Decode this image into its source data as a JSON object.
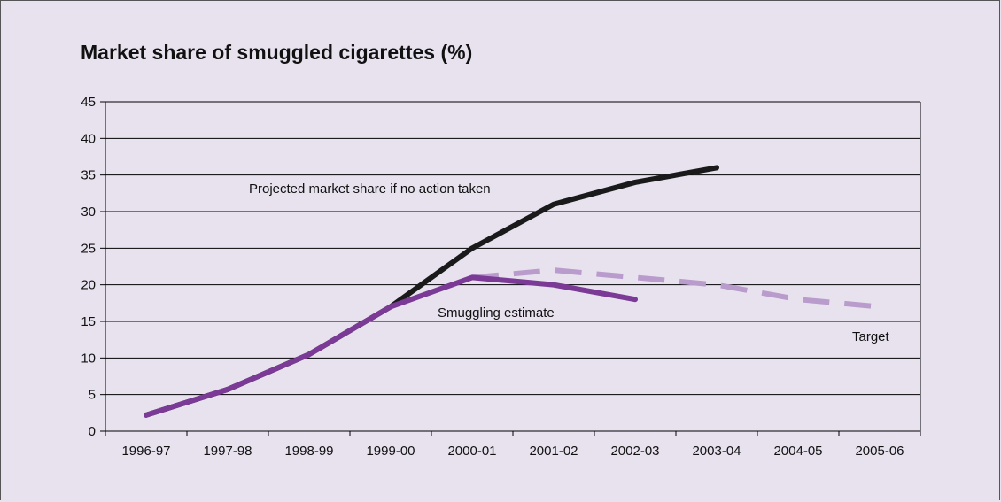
{
  "chart_data": {
    "type": "line",
    "title": "Market share of smuggled cigarettes (%)",
    "xlabel": "",
    "ylabel": "",
    "categories": [
      "1996-97",
      "1997-98",
      "1998-99",
      "1999-00",
      "2000-01",
      "2001-02",
      "2002-03",
      "2003-04",
      "2004-05",
      "2005-06"
    ],
    "ylim": [
      0,
      45
    ],
    "yticks": [
      0,
      5,
      10,
      15,
      20,
      25,
      30,
      35,
      40,
      45
    ],
    "grid": true,
    "series": [
      {
        "name": "Projected market share if no action taken",
        "color": "#1a1a1a",
        "dash": false,
        "values": [
          2.2,
          5.7,
          10.5,
          17,
          25,
          31,
          34,
          36,
          null,
          null
        ]
      },
      {
        "name": "Smuggling estimate",
        "color": "#7a3a96",
        "dash": false,
        "values": [
          2.2,
          5.7,
          10.5,
          17,
          21,
          20,
          18,
          null,
          null,
          null
        ]
      },
      {
        "name": "Target",
        "color": "#b99ccc",
        "dash": true,
        "values": [
          null,
          null,
          null,
          null,
          21,
          22,
          21,
          20,
          18,
          17
        ]
      }
    ]
  }
}
